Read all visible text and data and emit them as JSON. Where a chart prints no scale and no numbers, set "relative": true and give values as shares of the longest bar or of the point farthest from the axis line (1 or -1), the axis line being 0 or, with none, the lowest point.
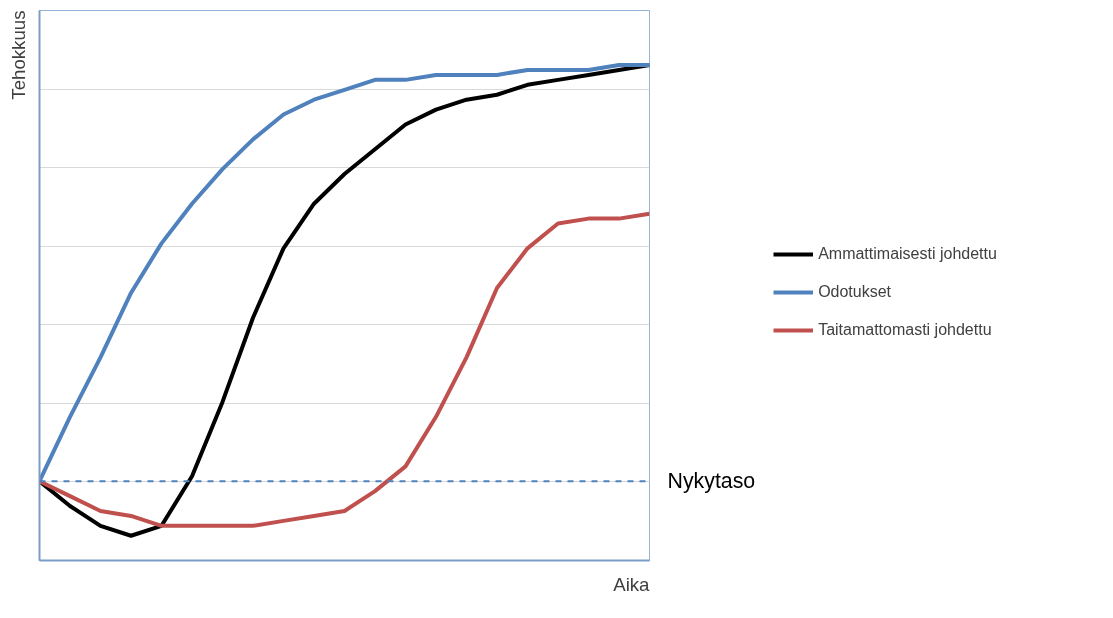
{
  "chart_data": {
    "type": "line",
    "relative": true,
    "xlabel": "Aika",
    "ylabel": "Tehokkuus",
    "categories": [
      null,
      null,
      null,
      null,
      null,
      null,
      null,
      null,
      null,
      null,
      null,
      null,
      null,
      null,
      null,
      null,
      null,
      null,
      null,
      null,
      null
    ],
    "series": [
      {
        "name": "Ammattimaisesti johdettu",
        "color": "#000000",
        "values": [
          0.16,
          0.11,
          0.07,
          0.05,
          0.07,
          0.17,
          0.32,
          0.49,
          0.63,
          0.72,
          0.78,
          0.83,
          0.88,
          0.91,
          0.93,
          0.94,
          0.96,
          0.97,
          0.98,
          0.99,
          1
        ]
      },
      {
        "name": "Odotukset",
        "color": "#4f81bd",
        "values": [
          0.16,
          0.29,
          0.41,
          0.54,
          0.64,
          0.72,
          0.79,
          0.85,
          0.9,
          0.93,
          0.95,
          0.97,
          0.97,
          0.98,
          0.98,
          0.98,
          0.99,
          0.99,
          0.99,
          1,
          1
        ]
      },
      {
        "name": "Taitamattomasti johdettu",
        "color": "#c0504d",
        "values": [
          0.16,
          0.13,
          0.1,
          0.09,
          0.07,
          0.07,
          0.07,
          0.07,
          0.08,
          0.09,
          0.1,
          0.14,
          0.19,
          0.29,
          0.41,
          0.55,
          0.63,
          0.68,
          0.69,
          0.69,
          0.7
        ]
      }
    ],
    "ref_lines": [
      {
        "axis": "y",
        "value": 0.16,
        "label": "Nykytaso",
        "color": "#4f81bd",
        "line_style": "dashed"
      }
    ],
    "grid": "y",
    "legend": "right",
    "marker": "none",
    "line_style": "solid"
  }
}
